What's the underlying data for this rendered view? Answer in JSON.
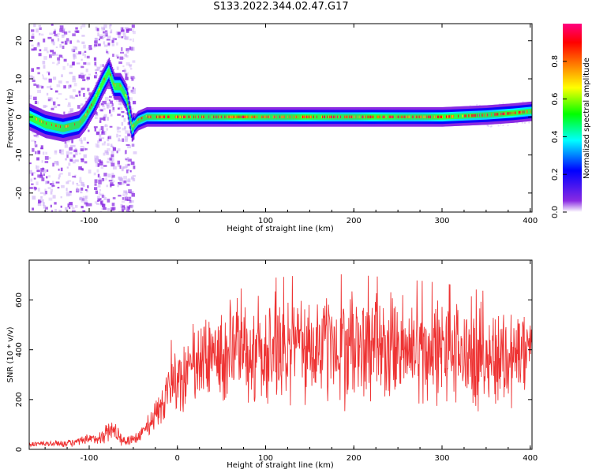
{
  "title": "S133.2022.344.02.47.G17",
  "chart_data": [
    {
      "type": "heatmap",
      "name": "spectrogram",
      "xlabel": "Height of straight line (km)",
      "ylabel": "Frequency (Hz)",
      "xlim": [
        -168,
        402
      ],
      "ylim": [
        -25,
        24.5
      ],
      "xticks": [
        -100,
        0,
        100,
        200,
        300,
        400
      ],
      "yticks": [
        -20,
        -10,
        0,
        10,
        20
      ],
      "colorbar": {
        "label": "Normalized spectral amplitude",
        "range": [
          0,
          1
        ],
        "ticks": [
          "0.0",
          "0.2",
          "0.4",
          "0.6",
          "0.8"
        ],
        "colormap": [
          "#ffffff",
          "#8a2be2",
          "#0000ff",
          "#00ffff",
          "#00ff00",
          "#ffff00",
          "#ff7f00",
          "#ff0000",
          "#ff0080"
        ]
      },
      "ridge": {
        "description_x": [
          -168,
          -150,
          -130,
          -112,
          -105,
          -95,
          -85,
          -78,
          -72,
          -65,
          -58,
          -52,
          -45,
          -35,
          0,
          100,
          200,
          300,
          350,
          380,
          402
        ],
        "frequency_y": [
          0,
          -2,
          -3,
          -2,
          0,
          4,
          9,
          12,
          8,
          8,
          5,
          -3,
          -1,
          0,
          0,
          0,
          0,
          0,
          0.5,
          1,
          1.5
        ]
      }
    },
    {
      "type": "line",
      "name": "snr",
      "xlabel": "Height of straight line (km)",
      "ylabel": "SNR (10 * v/v)",
      "xlim": [
        -168,
        402
      ],
      "ylim": [
        0,
        760
      ],
      "xticks": [
        -100,
        0,
        100,
        200,
        300,
        400
      ],
      "yticks": [
        0,
        200,
        400,
        600
      ],
      "color": "#ee3333",
      "envelope": {
        "x": [
          -168,
          -120,
          -90,
          -75,
          -70,
          -60,
          -40,
          -20,
          -5,
          10,
          30,
          50,
          100,
          150,
          200,
          250,
          300,
          350,
          402
        ],
        "y": [
          20,
          25,
          45,
          80,
          70,
          30,
          60,
          160,
          270,
          300,
          360,
          390,
          400,
          410,
          410,
          400,
          390,
          370,
          380
        ]
      }
    }
  ]
}
